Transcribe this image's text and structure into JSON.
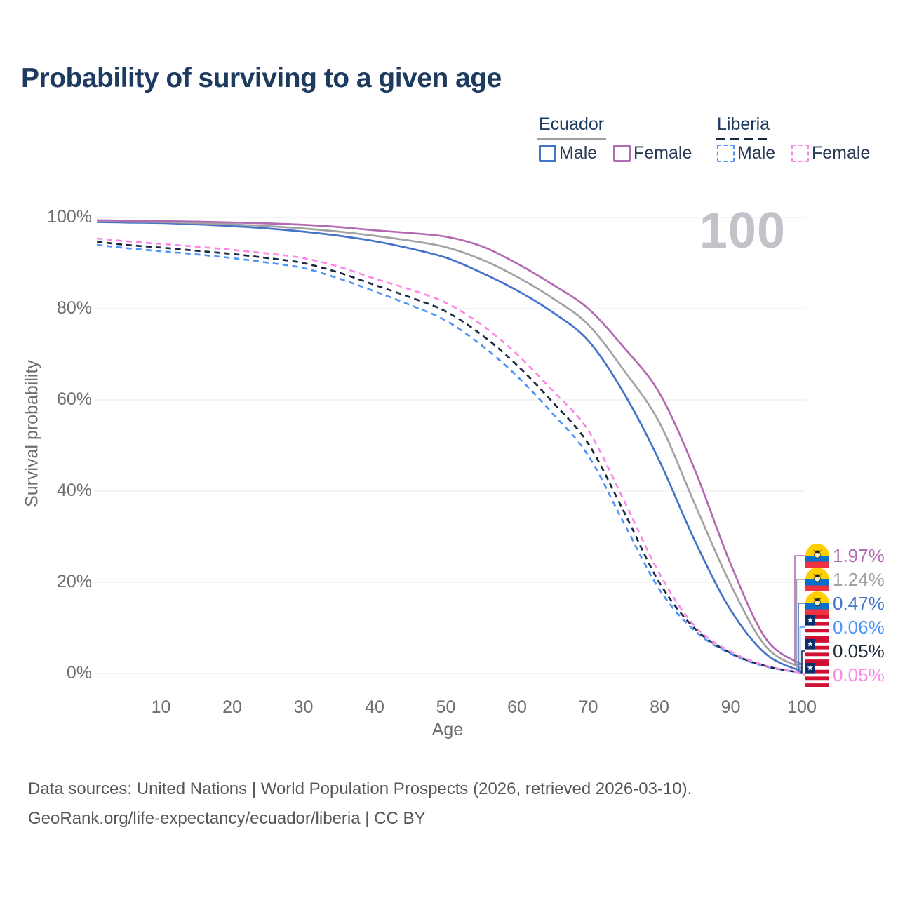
{
  "title": "Probability of surviving to a given age",
  "watermark": "100",
  "legend": {
    "groups": [
      {
        "label": "Ecuador",
        "line_style": "solid",
        "line_color": "#9e9ea3",
        "items": [
          {
            "label": "Male",
            "color": "#4573c9",
            "dashed": false
          },
          {
            "label": "Female",
            "color": "#b26bb2",
            "dashed": false
          }
        ]
      },
      {
        "label": "Liberia",
        "line_style": "dashed",
        "line_color": "#16283f",
        "items": [
          {
            "label": "Male",
            "color": "#4f94fb",
            "dashed": true
          },
          {
            "label": "Female",
            "color": "#fc87e6",
            "dashed": true
          }
        ]
      }
    ]
  },
  "chart_data": {
    "type": "line",
    "title": "Probability of surviving to a given age",
    "xlabel": "Age",
    "ylabel": "Survival probability",
    "xlim": [
      0,
      100
    ],
    "ylim": [
      0,
      100
    ],
    "grid": "horizontal-only",
    "legend_position": "top-right",
    "x_ticks": [
      10,
      20,
      30,
      40,
      50,
      60,
      70,
      80,
      90,
      100
    ],
    "y_ticks": [
      0,
      20,
      40,
      60,
      80,
      100
    ],
    "y_tick_labels": [
      "0%",
      "20%",
      "40%",
      "60%",
      "80%",
      "100%"
    ],
    "x": [
      1,
      5,
      10,
      15,
      20,
      25,
      30,
      35,
      40,
      45,
      50,
      55,
      60,
      65,
      70,
      75,
      80,
      85,
      90,
      95,
      100
    ],
    "series": [
      {
        "name": "Ecuador Male",
        "country": "Ecuador",
        "sex": "Male",
        "color": "#4573c9",
        "dashed": false,
        "values": [
          99.0,
          98.9,
          98.8,
          98.5,
          98.1,
          97.6,
          96.9,
          96.0,
          94.8,
          93.2,
          91.2,
          87.9,
          84.0,
          79.2,
          73.0,
          61.5,
          46.6,
          29.0,
          13.9,
          4.2,
          0.47
        ]
      },
      {
        "name": "Ecuador",
        "country": "Ecuador",
        "sex": "Both",
        "color": "#a2a2a2",
        "dashed": false,
        "values": [
          99.2,
          99.1,
          99.0,
          98.8,
          98.5,
          98.1,
          97.6,
          96.9,
          96.0,
          94.9,
          93.5,
          90.8,
          87.0,
          82.3,
          76.5,
          66.5,
          55.0,
          37.0,
          19.5,
          5.8,
          1.24
        ]
      },
      {
        "name": "Ecuador Female",
        "country": "Ecuador",
        "sex": "Female",
        "color": "#b26bb2",
        "dashed": false,
        "values": [
          99.4,
          99.3,
          99.2,
          99.1,
          98.9,
          98.7,
          98.4,
          97.9,
          97.2,
          96.6,
          95.8,
          93.7,
          89.9,
          85.3,
          80.0,
          71.5,
          61.5,
          44.5,
          24.0,
          7.5,
          1.97
        ]
      },
      {
        "name": "Liberia Male",
        "country": "Liberia",
        "sex": "Male",
        "color": "#4f94fb",
        "dashed": true,
        "values": [
          94.0,
          93.3,
          92.6,
          91.9,
          91.1,
          90.1,
          88.9,
          86.6,
          83.8,
          80.8,
          77.4,
          72.0,
          65.2,
          57.0,
          47.8,
          33.0,
          18.4,
          9.3,
          4.3,
          1.5,
          0.06
        ]
      },
      {
        "name": "Liberia",
        "country": "Liberia",
        "sex": "Both",
        "color": "#1a2940",
        "dashed": true,
        "values": [
          94.7,
          94.0,
          93.4,
          92.7,
          92.0,
          91.1,
          90.0,
          87.9,
          85.2,
          82.5,
          79.4,
          74.3,
          67.6,
          59.5,
          50.4,
          35.5,
          19.9,
          9.8,
          4.5,
          1.6,
          0.05
        ]
      },
      {
        "name": "Liberia Female",
        "country": "Liberia",
        "sex": "Female",
        "color": "#fc87e6",
        "dashed": true,
        "values": [
          95.4,
          94.8,
          94.2,
          93.6,
          92.9,
          92.1,
          91.1,
          89.2,
          86.6,
          84.2,
          81.3,
          76.5,
          70.0,
          62.0,
          53.3,
          38.0,
          21.9,
          10.3,
          4.8,
          1.7,
          0.05
        ]
      }
    ]
  },
  "end_labels": [
    {
      "flag": "ecuador",
      "series": "Ecuador Female",
      "value": "1.97%",
      "end_value": 1.97,
      "color": "#b26bb2"
    },
    {
      "flag": "ecuador",
      "series": "Ecuador",
      "value": "1.24%",
      "end_value": 1.24,
      "color": "#a2a2a2"
    },
    {
      "flag": "ecuador",
      "series": "Ecuador Male",
      "value": "0.47%",
      "end_value": 0.47,
      "color": "#4573c9"
    },
    {
      "flag": "liberia",
      "series": "Liberia Male",
      "value": "0.06%",
      "end_value": 0.06,
      "color": "#4f94fb"
    },
    {
      "flag": "liberia",
      "series": "Liberia",
      "value": "0.05%",
      "end_value": 0.05,
      "color": "#202c3d"
    },
    {
      "flag": "liberia",
      "series": "Liberia Female",
      "value": "0.05%",
      "end_value": 0.05,
      "color": "#fc87e6"
    }
  ],
  "footer": {
    "line1": "Data sources: United Nations | World Population Prospects (2026, retrieved 2026-03-10).",
    "line2": "GeoRank.org/life-expectancy/ecuador/liberia | CC BY"
  }
}
